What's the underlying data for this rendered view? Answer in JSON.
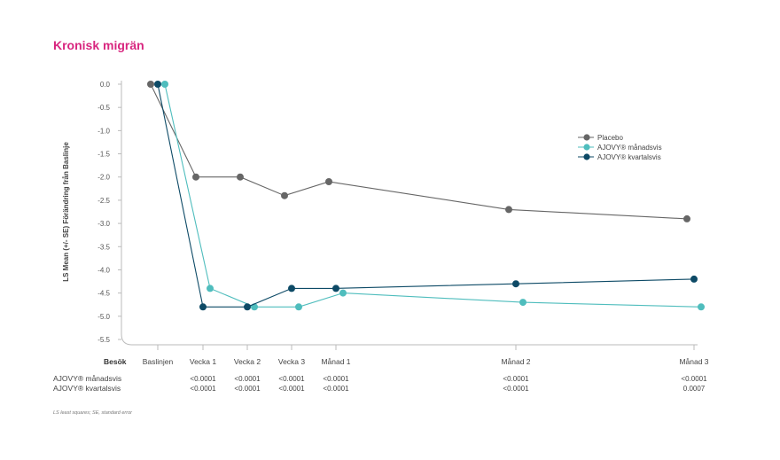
{
  "title": "Kronisk migrän",
  "footnote": "LS least squares; SE, standard error",
  "chart_data": {
    "type": "line",
    "ylabel": "LS Mean (+/- SE) Förändring från Baslinje",
    "xlabel": "Besök",
    "ylim": [
      -5.5,
      0.0
    ],
    "yticks": [
      "0.0",
      "-0.5",
      "-1.0",
      "-1.5",
      "-2.0",
      "-2.5",
      "-3.0",
      "-3.5",
      "-4.0",
      "-4.5",
      "-5.0",
      "-5.5"
    ],
    "categories": [
      "Baslinjen",
      "Vecka 1",
      "Vecka 2",
      "Vecka 3",
      "Månad 1",
      "Månad 2",
      "Månad 3"
    ],
    "legend_position": "right",
    "series": [
      {
        "name": "Placebo",
        "color": "#666666",
        "values": [
          0.0,
          -2.0,
          -2.0,
          -2.4,
          -2.1,
          -2.7,
          -2.9
        ]
      },
      {
        "name": "AJOVY® månadsvis",
        "color": "#4fbdbd",
        "values": [
          0.0,
          -4.4,
          -4.8,
          -4.8,
          -4.5,
          -4.7,
          -4.8
        ]
      },
      {
        "name": "AJOVY® kvartalsvis",
        "color": "#0d4a66",
        "values": [
          0.0,
          -4.8,
          -4.8,
          -4.4,
          -4.4,
          -4.3,
          -4.2
        ]
      }
    ],
    "pvalue_rows": [
      {
        "label": "AJOVY® månadsvis",
        "values": [
          "",
          "<0.0001",
          "<0.0001",
          "<0.0001",
          "<0.0001",
          "<0.0001",
          "<0.0001"
        ]
      },
      {
        "label": "AJOVY® kvartalsvis",
        "values": [
          "",
          "<0.0001",
          "<0.0001",
          "<0.0001",
          "<0.0001",
          "<0.0001",
          "0.0007"
        ]
      }
    ]
  }
}
